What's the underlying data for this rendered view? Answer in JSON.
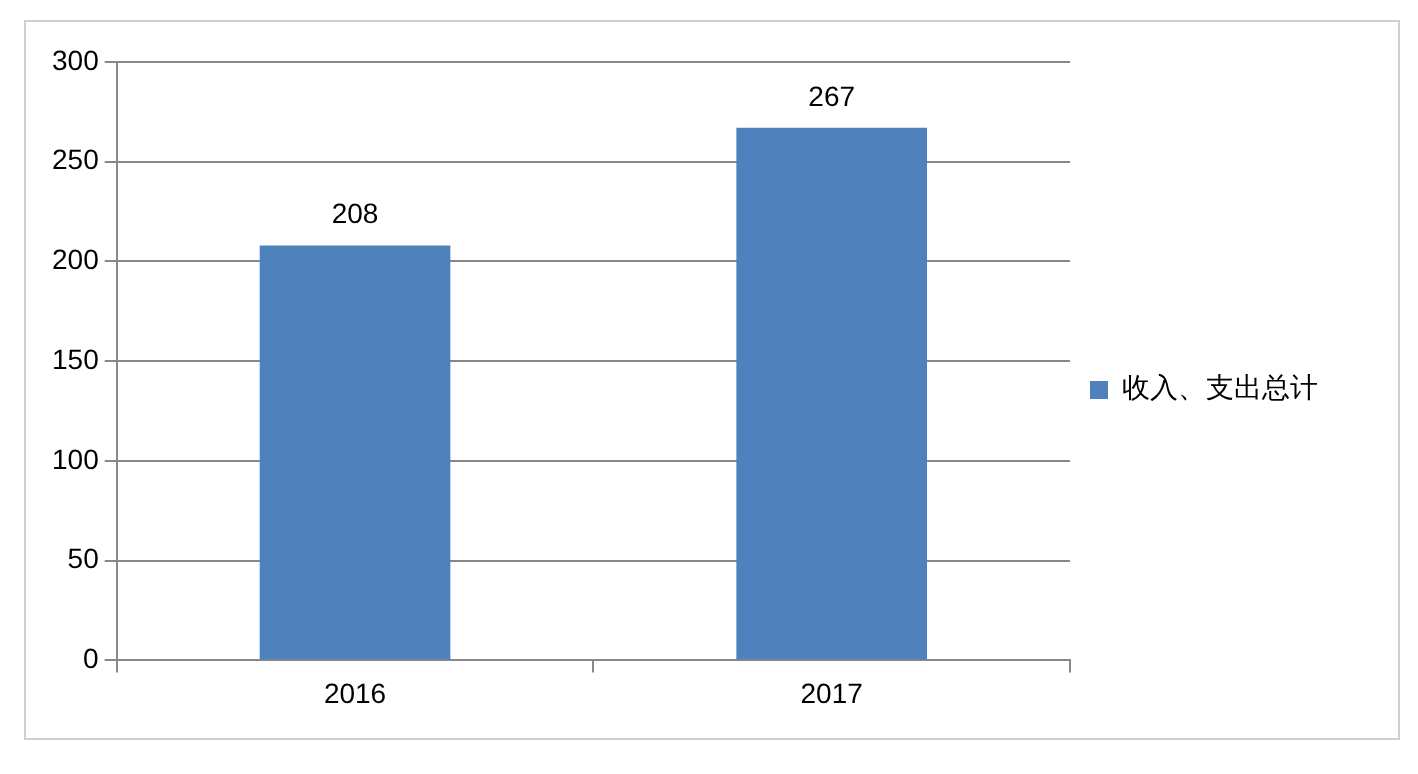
{
  "chart_data": {
    "type": "bar",
    "categories": [
      "2016",
      "2017"
    ],
    "series": [
      {
        "name": "收入、支出总计",
        "color": "#4f81bd",
        "values": [
          208,
          267
        ]
      }
    ],
    "ylim": [
      0,
      300
    ],
    "yticks": [
      0,
      50,
      100,
      150,
      200,
      250,
      300
    ],
    "grid": "y",
    "legend": "right",
    "data_labels": true
  }
}
